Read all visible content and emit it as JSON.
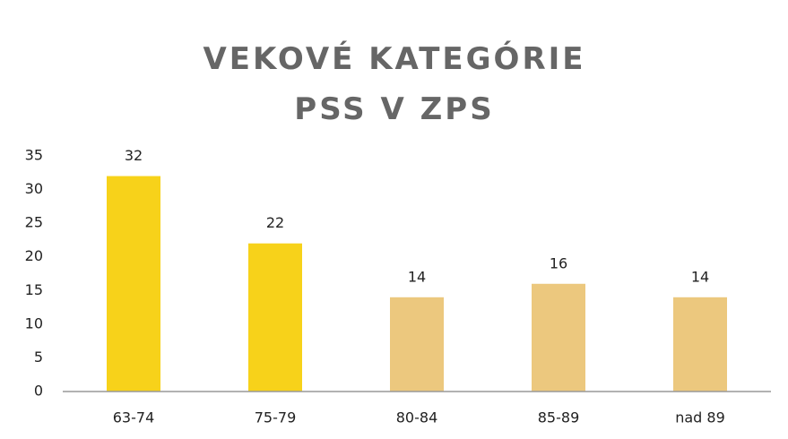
{
  "chart_data": {
    "type": "bar",
    "title": "VEKOVÉ KATEGÓRIE PSS V ZPS",
    "categories": [
      "63-74",
      "75-79",
      "80-84",
      "85-89",
      "nad 89"
    ],
    "values": [
      32,
      22,
      14,
      16,
      14
    ],
    "colors": [
      "#f7d21a",
      "#f7d21a",
      "#ecc87e",
      "#ecc87e",
      "#ecc87e"
    ],
    "ylim": [
      0,
      35
    ],
    "yticks": [
      0,
      5,
      10,
      15,
      20,
      25,
      30,
      35
    ],
    "grid": false
  }
}
